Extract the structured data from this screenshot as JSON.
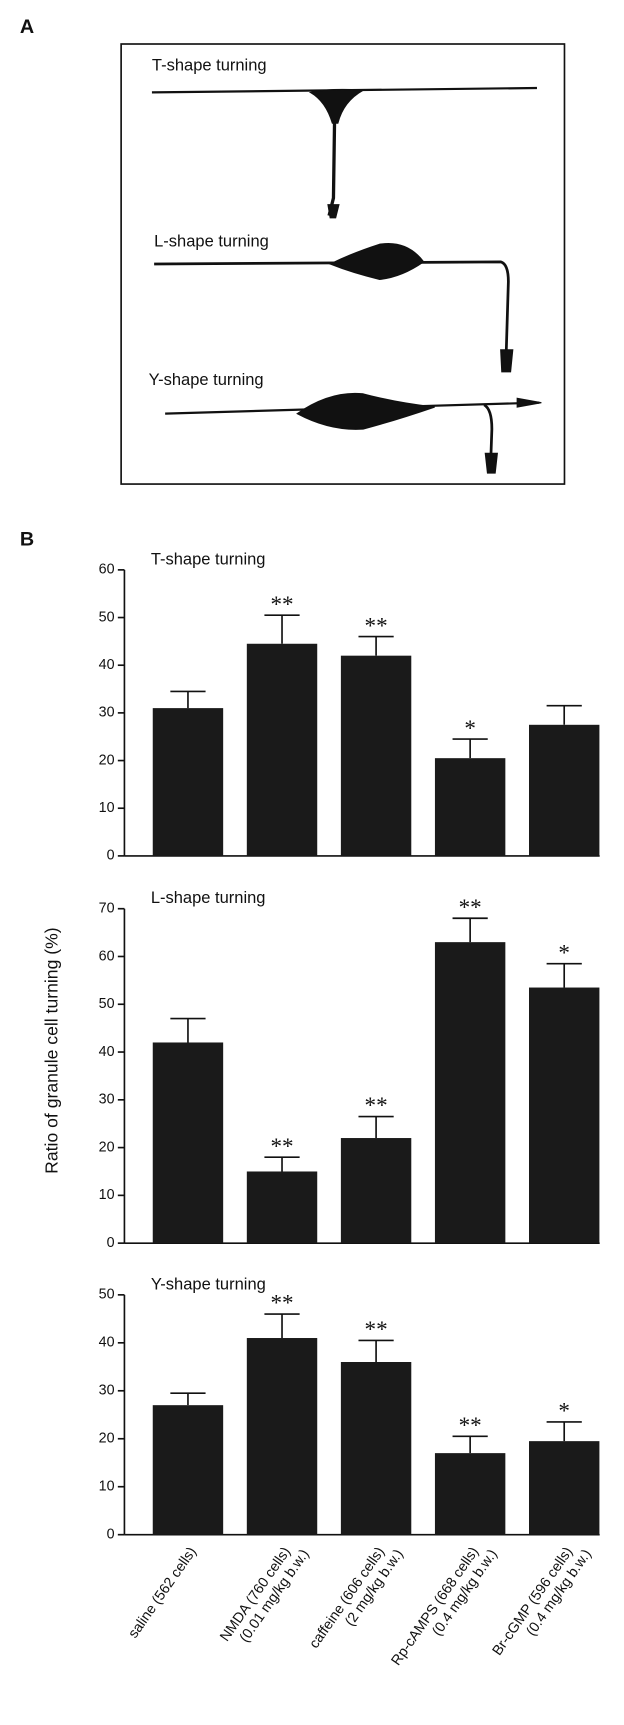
{
  "panel_labels": [
    "A",
    "B"
  ],
  "panel_a": {
    "labels": [
      "T-shape turning",
      "L-shape turning",
      "Y-shape turning"
    ]
  },
  "chart_data": [
    {
      "type": "bar",
      "title": "T-shape turning",
      "values": [
        31,
        44.5,
        42,
        20.5,
        27.5
      ],
      "errors": [
        3.5,
        6,
        4,
        4,
        4
      ],
      "annotations": [
        null,
        "**",
        "**",
        "*",
        null
      ],
      "color": "#1a1a1a",
      "ylim": [
        0,
        60
      ],
      "yticks": [
        0,
        10,
        20,
        30,
        40,
        50,
        60
      ]
    },
    {
      "type": "bar",
      "title": "L-shape turning",
      "ylabel": "Ratio of granule cell turning (%)",
      "values": [
        42,
        15,
        22,
        63,
        53.5
      ],
      "errors": [
        5,
        3,
        4.5,
        5,
        5
      ],
      "annotations": [
        null,
        "**",
        "**",
        "**",
        "*"
      ],
      "color": "#1a1a1a",
      "ylim": [
        0,
        70
      ],
      "yticks": [
        0,
        10,
        20,
        30,
        40,
        50,
        60,
        70
      ]
    },
    {
      "type": "bar",
      "title": "Y-shape turning",
      "categories": [
        [
          "saline (562 cells)"
        ],
        [
          "NMDA (760 cells)",
          "(0.01 mg/kg b.w.)"
        ],
        [
          "caffeine (606 cells)",
          "(2 mg/kg b.w.)"
        ],
        [
          "Rp-cAMPS (668 cells)",
          "(0.4 mg/kg b.w.)"
        ],
        [
          "Br-cGMP (596 cells)",
          "(0.4 mg/kg b.w.)"
        ]
      ],
      "values": [
        27,
        41,
        36,
        17,
        19.5
      ],
      "errors": [
        2.5,
        5,
        4.5,
        3.5,
        4
      ],
      "annotations": [
        null,
        "**",
        "**",
        "**",
        "*"
      ],
      "color": "#1a1a1a",
      "ylim": [
        0,
        50
      ],
      "yticks": [
        0,
        10,
        20,
        30,
        40,
        50
      ]
    }
  ]
}
